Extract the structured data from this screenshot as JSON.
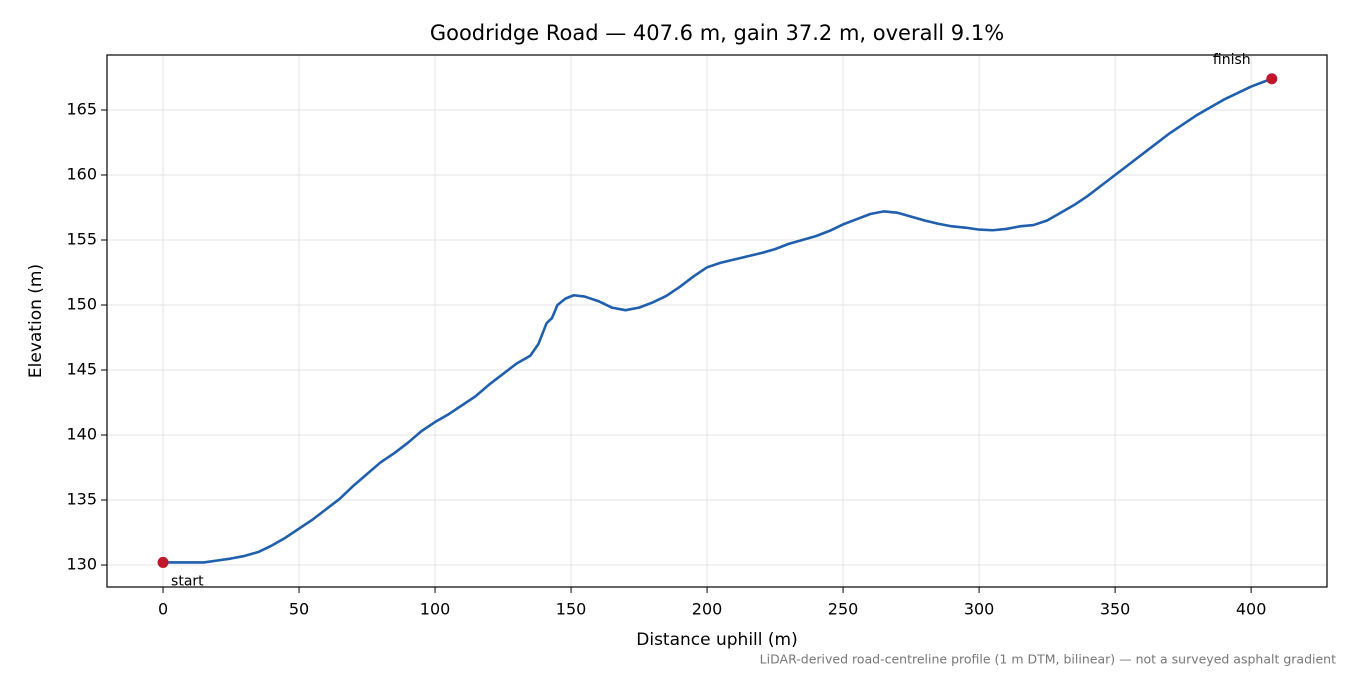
{
  "chart_data": {
    "type": "line",
    "title": "Goodridge Road — 407.6 m, gain 37.2 m, overall 9.1%",
    "xlabel": "Distance uphill (m)",
    "ylabel": "Elevation (m)",
    "note": "LiDAR-derived road-centreline profile (1 m DTM, bilinear) — not a surveyed asphalt gradient",
    "color": "#1f5fad",
    "marker_color": "#c0182a",
    "grid": true,
    "xlim": [
      -20.6,
      427.9
    ],
    "ylim": [
      128.31,
      169.23
    ],
    "xticks": [
      0,
      50,
      100,
      150,
      200,
      250,
      300,
      350,
      400
    ],
    "yticks": [
      130,
      135,
      140,
      145,
      150,
      155,
      160,
      165
    ],
    "x": [
      0,
      5,
      10,
      15,
      20,
      25,
      30,
      35,
      40,
      45,
      50,
      55,
      60,
      65,
      70,
      75,
      80,
      85,
      90,
      95,
      100,
      105,
      110,
      115,
      120,
      125,
      130,
      135,
      138,
      141,
      143,
      145,
      148,
      151,
      155,
      160,
      165,
      170,
      175,
      180,
      185,
      190,
      195,
      200,
      205,
      210,
      215,
      220,
      225,
      230,
      235,
      240,
      245,
      250,
      255,
      260,
      265,
      270,
      275,
      280,
      285,
      290,
      295,
      300,
      305,
      310,
      315,
      320,
      325,
      330,
      335,
      340,
      345,
      350,
      355,
      360,
      365,
      370,
      375,
      380,
      385,
      390,
      395,
      400,
      405,
      407.6
    ],
    "values": [
      130.2,
      130.2,
      130.2,
      130.2,
      130.35,
      130.5,
      130.7,
      131.0,
      131.5,
      132.1,
      132.8,
      133.5,
      134.3,
      135.1,
      136.1,
      137.0,
      137.9,
      138.6,
      139.4,
      140.3,
      141.0,
      141.6,
      142.3,
      143.0,
      143.9,
      144.7,
      145.5,
      146.1,
      147.0,
      148.6,
      149.0,
      150.0,
      150.5,
      150.75,
      150.65,
      150.3,
      149.8,
      149.6,
      149.8,
      150.2,
      150.7,
      151.4,
      152.2,
      152.9,
      153.25,
      153.5,
      153.75,
      154.0,
      154.3,
      154.7,
      155.0,
      155.3,
      155.7,
      156.2,
      156.6,
      157.0,
      157.2,
      157.1,
      156.8,
      156.5,
      156.25,
      156.05,
      155.95,
      155.8,
      155.75,
      155.85,
      156.05,
      156.15,
      156.5,
      157.1,
      157.7,
      158.4,
      159.2,
      160.0,
      160.8,
      161.6,
      162.4,
      163.2,
      163.9,
      164.6,
      165.2,
      165.8,
      166.3,
      166.8,
      167.2,
      167.4
    ],
    "points": [
      {
        "label": "start",
        "x": 0,
        "y": 130.2
      },
      {
        "label": "finish",
        "x": 407.6,
        "y": 167.4
      }
    ]
  }
}
